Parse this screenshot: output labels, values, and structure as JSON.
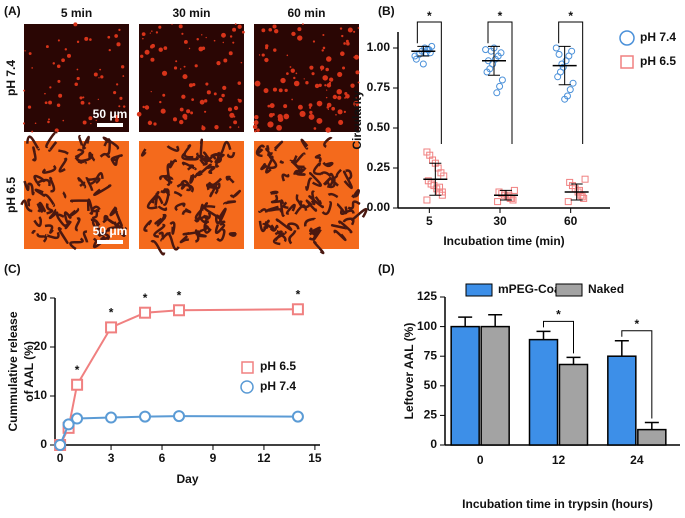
{
  "panel_a": {
    "panel_label": "(A)",
    "columns": [
      "5 min",
      "30 min",
      "60 min"
    ],
    "rows": [
      "pH 7.4",
      "pH 6.5"
    ],
    "scale_bar": "50 μm"
  },
  "chart_data": [
    {
      "type": "strip",
      "panel_label": "(B)",
      "x_label": "Incubation time (min)",
      "y_label": "Circularity",
      "categories": [
        "5",
        "30",
        "60"
      ],
      "ylim": [
        0,
        1.1
      ],
      "yticks": [
        {
          "value": 0,
          "label": "0.00"
        },
        {
          "value": 0.25,
          "label": "0.25"
        },
        {
          "value": 0.5,
          "label": "0.50"
        },
        {
          "value": 0.75,
          "label": "0.75"
        },
        {
          "value": 1,
          "label": "1.00"
        }
      ],
      "significance": [
        "*",
        "*",
        "*"
      ],
      "series": [
        {
          "name": "pH 7.4",
          "color": "#4a90d9",
          "marker": "circle",
          "values": [
            0.98,
            0.92,
            0.89
          ],
          "errors": [
            0.03,
            0.09,
            0.12
          ],
          "points": [
            [
              0.95,
              0.97,
              0.99,
              1.0,
              0.98,
              0.96,
              0.93,
              1.01,
              0.99,
              0.97,
              0.9
            ],
            [
              0.99,
              0.97,
              0.95,
              0.93,
              0.9,
              0.87,
              0.85,
              0.8,
              0.76,
              0.72,
              1.0,
              0.98,
              0.92
            ],
            [
              1.0,
              0.98,
              0.95,
              0.92,
              0.88,
              0.85,
              0.82,
              0.78,
              0.74,
              0.7,
              0.68,
              0.9,
              0.96
            ]
          ]
        },
        {
          "name": "pH 6.5",
          "color": "#f08080",
          "marker": "square",
          "values": [
            0.18,
            0.08,
            0.1
          ],
          "errors": [
            0.1,
            0.03,
            0.05
          ],
          "points": [
            [
              0.05,
              0.08,
              0.1,
              0.12,
              0.14,
              0.15,
              0.17,
              0.2,
              0.22,
              0.25,
              0.28,
              0.3,
              0.33,
              0.35,
              0.1,
              0.13
            ],
            [
              0.04,
              0.05,
              0.06,
              0.07,
              0.08,
              0.09,
              0.1,
              0.11,
              0.06,
              0.08
            ],
            [
              0.04,
              0.06,
              0.08,
              0.1,
              0.12,
              0.14,
              0.16,
              0.18,
              0.07,
              0.11
            ]
          ]
        }
      ]
    },
    {
      "type": "line",
      "panel_label": "(C)",
      "x_label": "Day",
      "y_label": [
        "Cummulative release",
        "of AAL (%)"
      ],
      "x": [
        0,
        0.5,
        1,
        3,
        5,
        7,
        14
      ],
      "xlim": [
        -0.3,
        15.3
      ],
      "xticks": [
        0,
        3,
        6,
        9,
        12,
        15
      ],
      "ylim": [
        0,
        30
      ],
      "yticks": [
        0,
        10,
        20,
        30
      ],
      "series": [
        {
          "name": "pH 6.5",
          "color": "#f08080",
          "marker": "square",
          "values": [
            0,
            3.5,
            12.3,
            24,
            27,
            27.5,
            27.7
          ]
        },
        {
          "name": "pH 7.4",
          "color": "#5b9bd5",
          "marker": "circle",
          "values": [
            0,
            4.2,
            5.4,
            5.6,
            5.8,
            5.9,
            5.8
          ]
        }
      ],
      "annotations": [
        {
          "x": 1,
          "text": "*"
        },
        {
          "x": 3,
          "text": "*"
        },
        {
          "x": 5,
          "text": "*"
        },
        {
          "x": 7,
          "text": "*"
        },
        {
          "x": 14,
          "text": "*"
        }
      ]
    },
    {
      "type": "bar",
      "panel_label": "(D)",
      "x_label": "Incubation time in trypsin (hours)",
      "y_label": "Leftover AAL (%)",
      "categories": [
        "0",
        "12",
        "24"
      ],
      "ylim": [
        0,
        125
      ],
      "yticks": [
        0,
        25,
        50,
        75,
        100,
        125
      ],
      "series": [
        {
          "name": "mPEG-Coa",
          "color": "#3d8fe8",
          "values": [
            100,
            89,
            75
          ],
          "errors": [
            8,
            7,
            13
          ]
        },
        {
          "name": "Naked",
          "color": "#a3a3a3",
          "values": [
            100,
            68,
            13
          ],
          "errors": [
            10,
            6,
            6
          ]
        }
      ],
      "annotations": [
        {
          "category": "12",
          "text": "*"
        },
        {
          "category": "24",
          "text": "*"
        }
      ]
    }
  ]
}
